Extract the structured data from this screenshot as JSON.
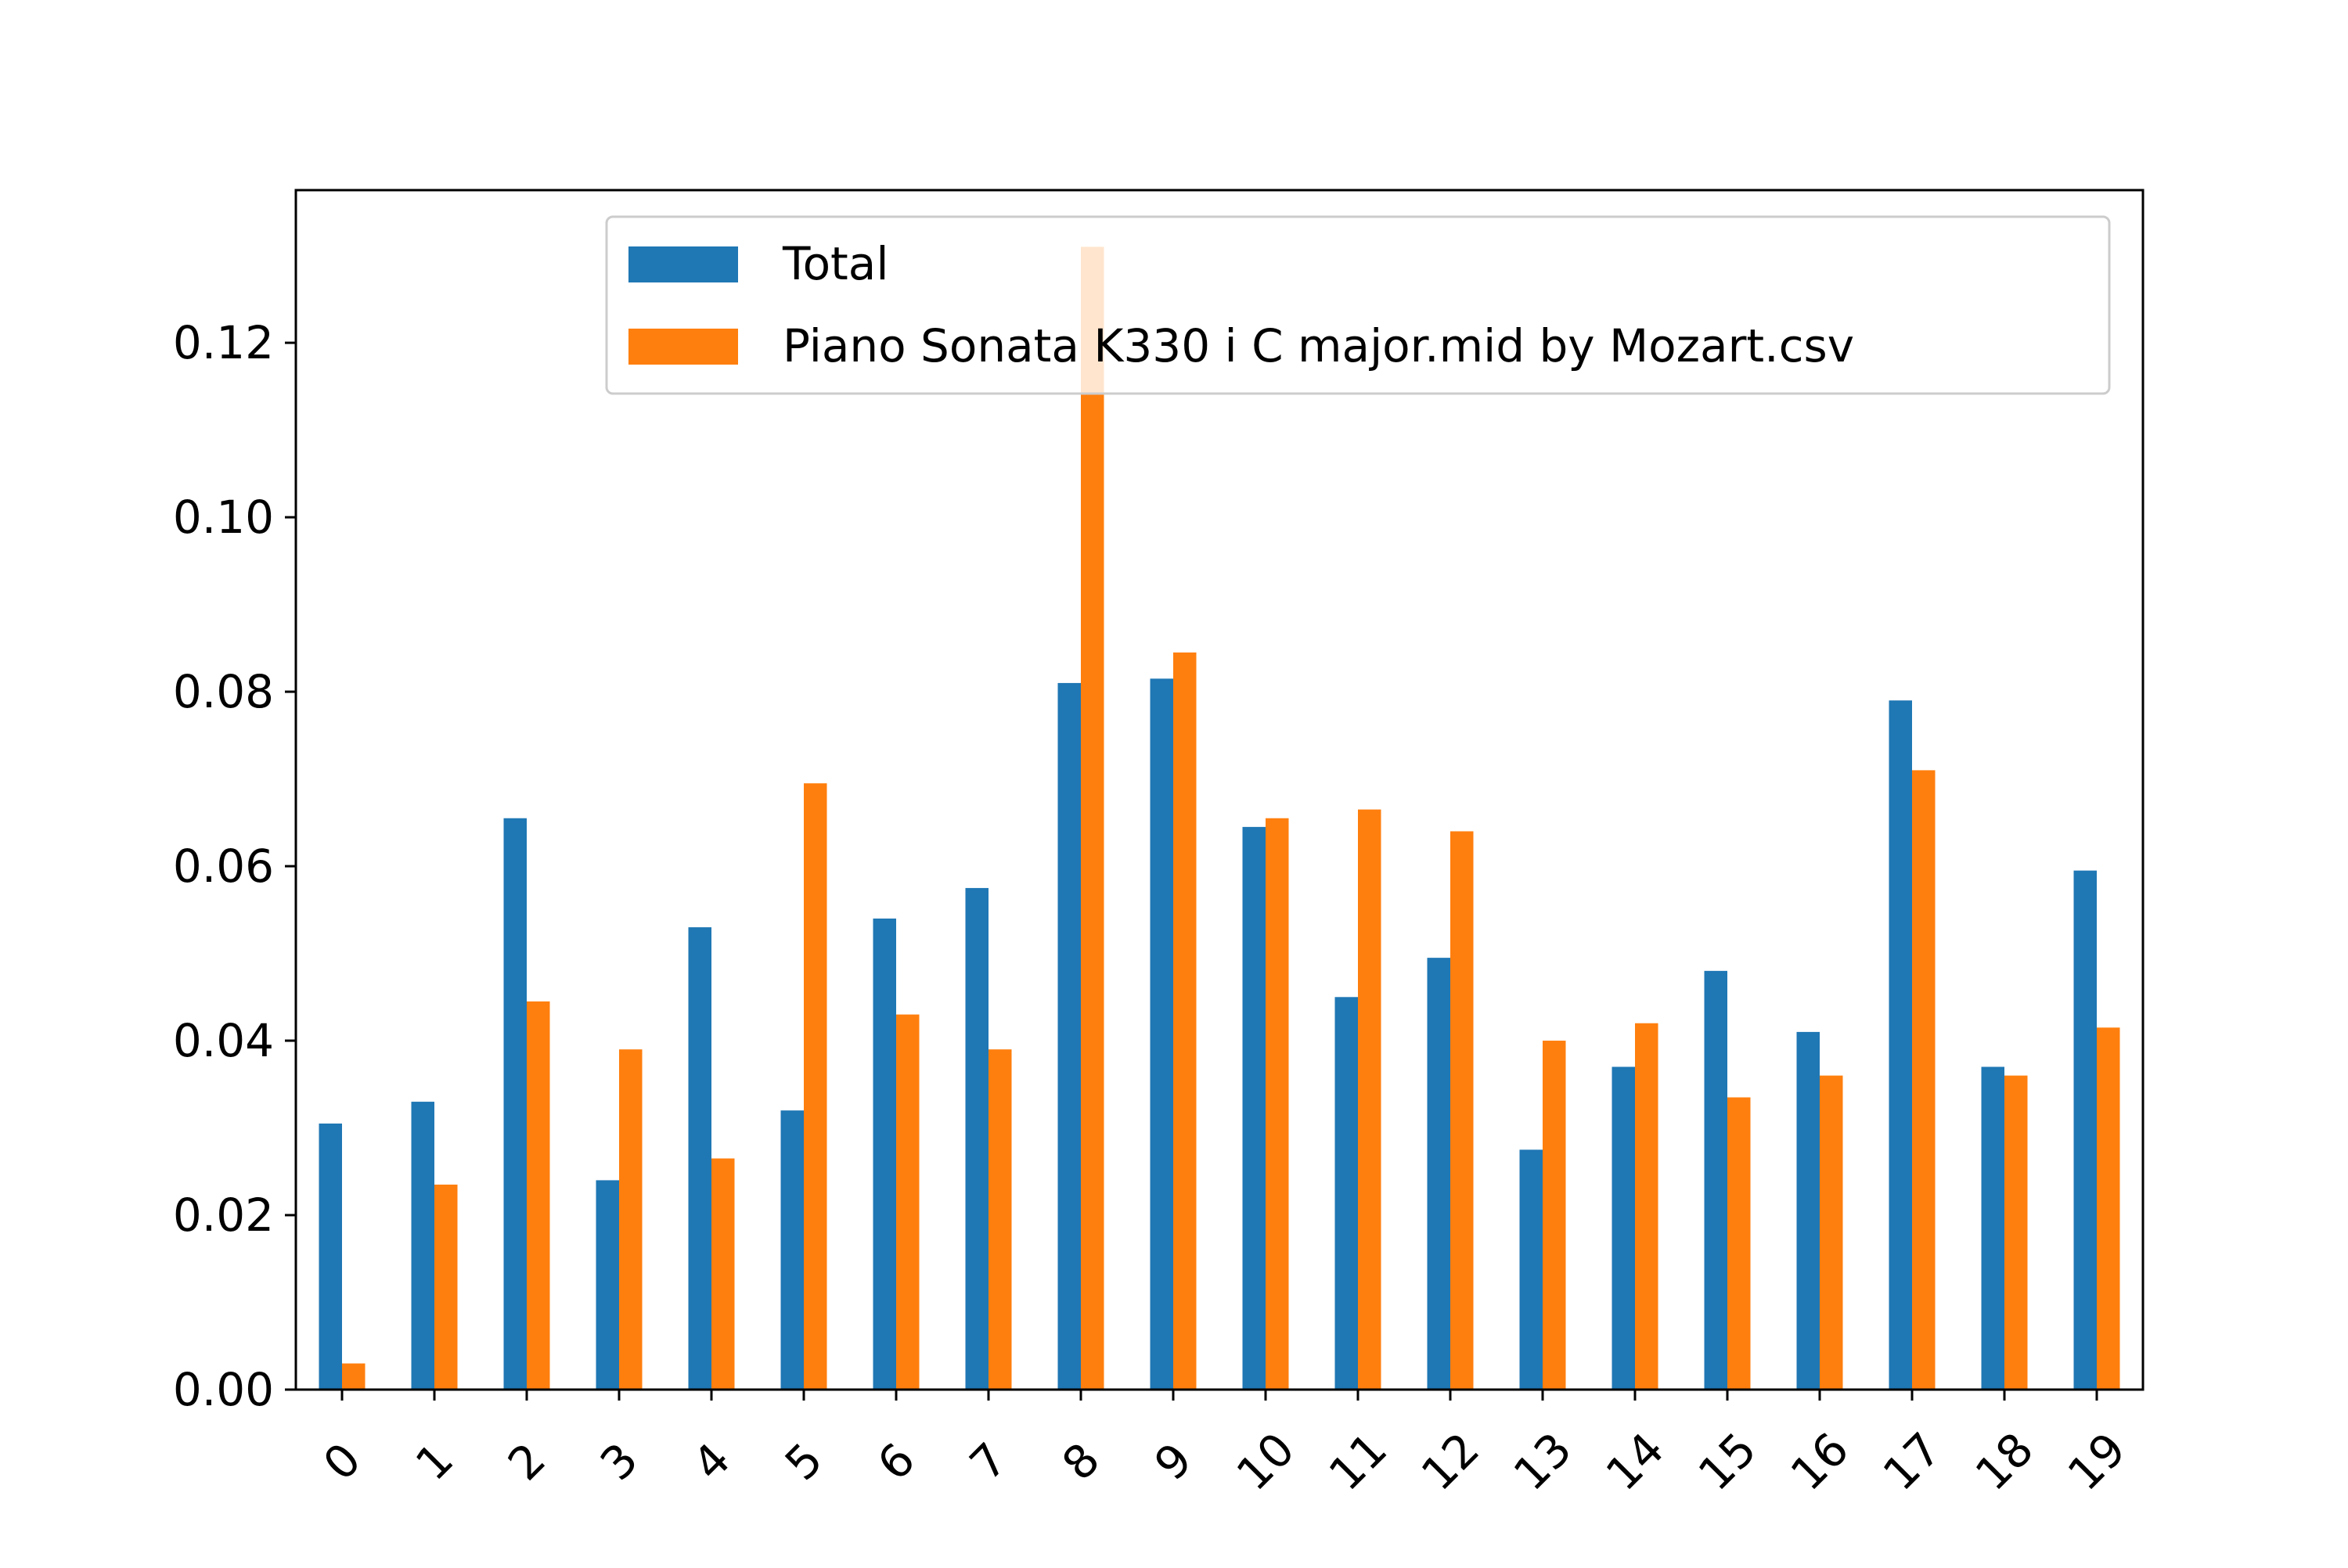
{
  "chart_data": {
    "type": "bar",
    "title": "",
    "xlabel": "",
    "ylabel": "",
    "categories": [
      "0",
      "1",
      "2",
      "3",
      "4",
      "5",
      "6",
      "7",
      "8",
      "9",
      "10",
      "11",
      "12",
      "13",
      "14",
      "15",
      "16",
      "17",
      "18",
      "19"
    ],
    "series": [
      {
        "name": "Total",
        "color": "#1f77b4",
        "values": [
          0.0305,
          0.033,
          0.0655,
          0.024,
          0.053,
          0.032,
          0.054,
          0.0575,
          0.081,
          0.0815,
          0.0645,
          0.045,
          0.0495,
          0.0275,
          0.037,
          0.048,
          0.041,
          0.079,
          0.037,
          0.0595
        ]
      },
      {
        "name": "Piano Sonata K330 i C major.mid by Mozart.csv",
        "color": "#ff7f0e",
        "values": [
          0.003,
          0.0235,
          0.0445,
          0.039,
          0.0265,
          0.0695,
          0.043,
          0.039,
          0.131,
          0.0845,
          0.0655,
          0.0665,
          0.064,
          0.04,
          0.042,
          0.0335,
          0.036,
          0.071,
          0.036,
          0.0415
        ]
      }
    ],
    "ylim": [
      0,
      0.1375
    ],
    "yticks": [
      "0.00",
      "0.02",
      "0.04",
      "0.06",
      "0.08",
      "0.10",
      "0.12"
    ],
    "grid": false,
    "legend_position": "top-right"
  }
}
